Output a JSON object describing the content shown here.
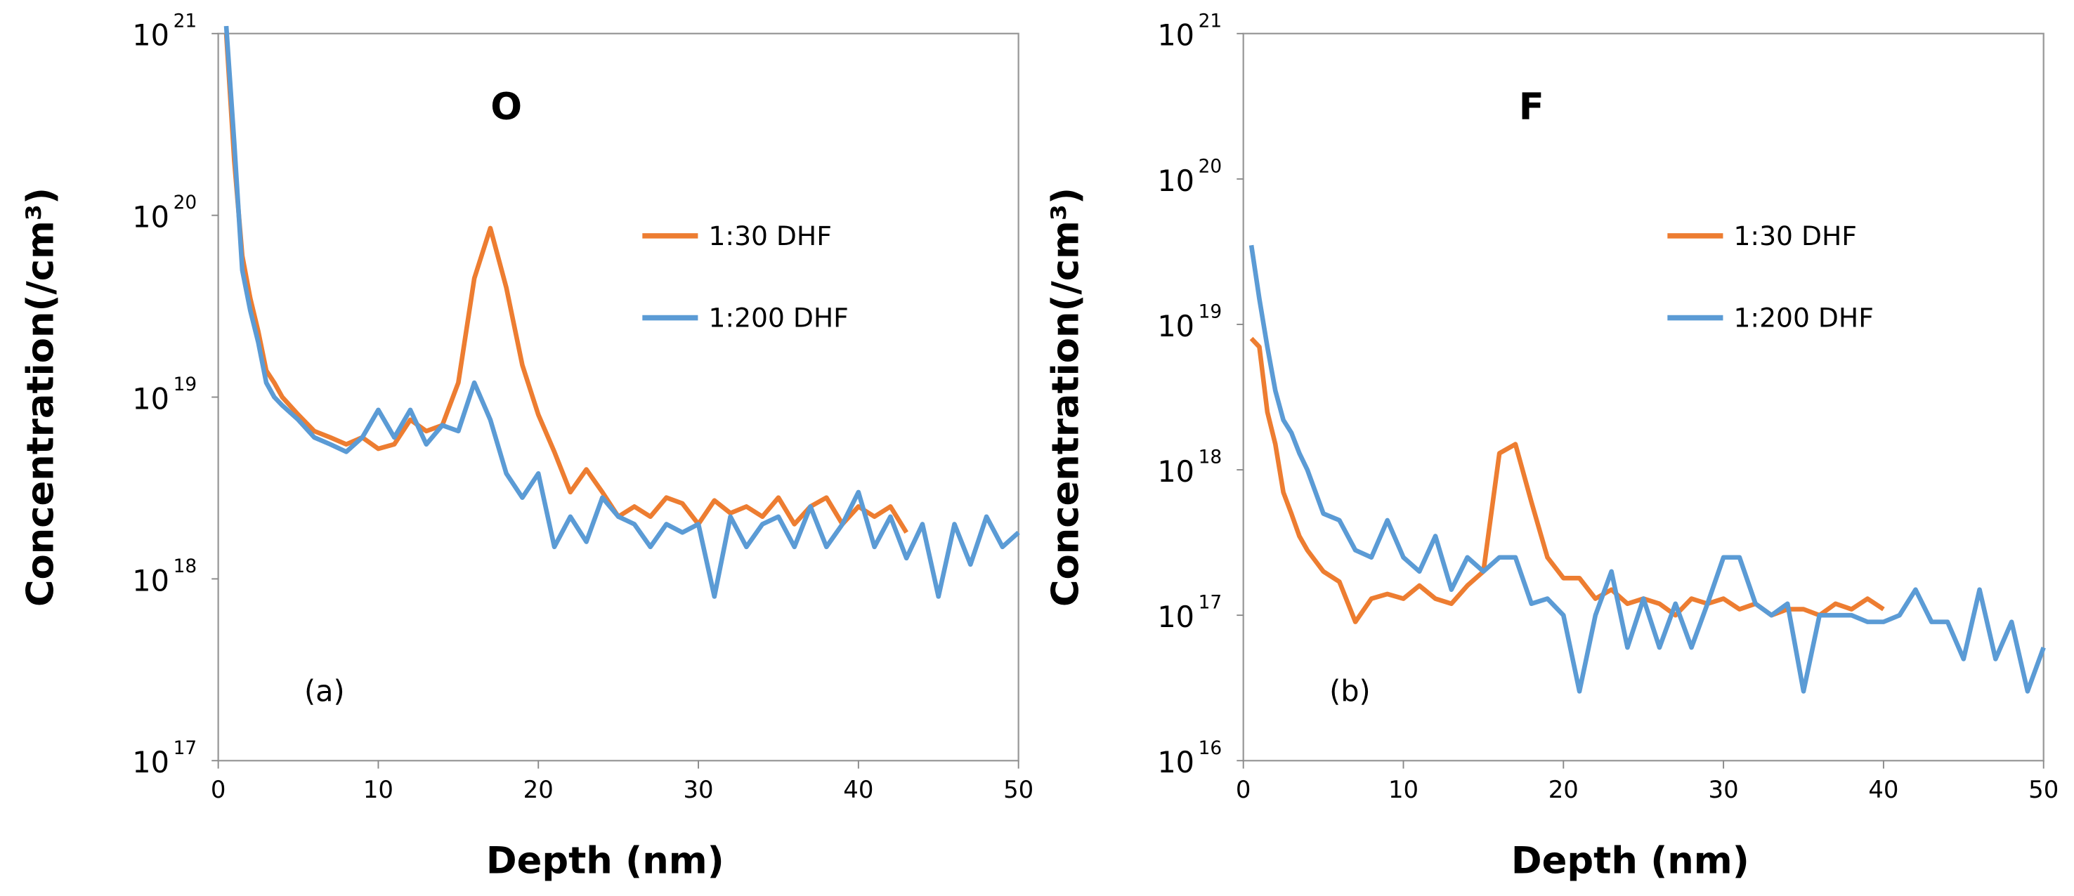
{
  "chart_data": [
    {
      "type": "line",
      "title": "O",
      "annotation": "(a)",
      "xlabel": "Depth (nm)",
      "ylabel": "Concentration(/cm³)",
      "log_y": true,
      "legend": "center right",
      "x": [
        0.5,
        1,
        1.5,
        2,
        2.5,
        3,
        3.5,
        4,
        5,
        6,
        7,
        8,
        9,
        10,
        11,
        12,
        13,
        14,
        15,
        16,
        17,
        18,
        19,
        20,
        21,
        22,
        23,
        24,
        25,
        26,
        27,
        28,
        29,
        30,
        31,
        32,
        33,
        34,
        35,
        36,
        37,
        38,
        39,
        40,
        41,
        42,
        43,
        44,
        45,
        46,
        47,
        48,
        49,
        50
      ],
      "xlim": [
        0,
        50
      ],
      "xticks": [
        0,
        10,
        20,
        30,
        40,
        50
      ],
      "ylim": [
        1e+17,
        1e+21
      ],
      "yticks": [
        {
          "value": 1e+17,
          "label": "10",
          "exponent": "17"
        },
        {
          "value": 1e+18,
          "label": "10",
          "exponent": "18"
        },
        {
          "value": 1e+19,
          "label": "10",
          "exponent": "19"
        },
        {
          "value": 1e+20,
          "label": "10",
          "exponent": "20"
        },
        {
          "value": 1e+21,
          "label": "10",
          "exponent": "21"
        }
      ],
      "series": [
        {
          "name": "1:30 DHF",
          "color": "#ed7d31",
          "values": [
            1e+21,
            2e+20,
            6e+19,
            3.5e+19,
            2.3e+19,
            1.4e+19,
            1.2e+19,
            1e+19,
            8e+18,
            6.5e+18,
            6e+18,
            5.5e+18,
            6e+18,
            5.2e+18,
            5.5e+18,
            7.5e+18,
            6.5e+18,
            7e+18,
            1.2e+19,
            4.5e+19,
            8.5e+19,
            4e+19,
            1.5e+19,
            8e+18,
            5e+18,
            3e+18,
            4e+18,
            3e+18,
            2.2e+18,
            2.5e+18,
            2.2e+18,
            2.8e+18,
            2.6e+18,
            2e+18,
            2.7e+18,
            2.3e+18,
            2.5e+18,
            2.2e+18,
            2.8e+18,
            2e+18,
            2.5e+18,
            2.8e+18,
            2e+18,
            2.5e+18,
            2.2e+18,
            2.5e+18,
            1.8e+18,
            null,
            null,
            null,
            null,
            null,
            null,
            null
          ]
        },
        {
          "name": "1:200 DHF",
          "color": "#5b9bd5",
          "values": [
            1.1e+21,
            2.5e+20,
            5e+19,
            3e+19,
            2e+19,
            1.2e+19,
            1e+19,
            9e+18,
            7.5e+18,
            6e+18,
            5.5e+18,
            5e+18,
            6e+18,
            8.5e+18,
            6e+18,
            8.5e+18,
            5.5e+18,
            7e+18,
            6.5e+18,
            1.2e+19,
            7.5e+18,
            3.8e+18,
            2.8e+18,
            3.8e+18,
            1.5e+18,
            2.2e+18,
            1.6e+18,
            2.8e+18,
            2.2e+18,
            2e+18,
            1.5e+18,
            2e+18,
            1.8e+18,
            2e+18,
            8e+17,
            2.2e+18,
            1.5e+18,
            2e+18,
            2.2e+18,
            1.5e+18,
            2.5e+18,
            1.5e+18,
            2e+18,
            3e+18,
            1.5e+18,
            2.2e+18,
            1.3e+18,
            2e+18,
            8e+17,
            2e+18,
            1.2e+18,
            2.2e+18,
            1.5e+18,
            1.8e+18
          ]
        }
      ]
    },
    {
      "type": "line",
      "title": "F",
      "annotation": "(b)",
      "xlabel": "Depth (nm)",
      "ylabel": "Concentration(/cm³)",
      "log_y": true,
      "legend": "center right",
      "x": [
        0.5,
        1,
        1.5,
        2,
        2.5,
        3,
        3.5,
        4,
        5,
        6,
        7,
        8,
        9,
        10,
        11,
        12,
        13,
        14,
        15,
        16,
        17,
        18,
        19,
        20,
        21,
        22,
        23,
        24,
        25,
        26,
        27,
        28,
        29,
        30,
        31,
        32,
        33,
        34,
        35,
        36,
        37,
        38,
        39,
        40,
        41,
        42,
        43,
        44,
        45,
        46,
        47,
        48,
        49,
        50
      ],
      "xlim": [
        0,
        50
      ],
      "xticks": [
        0,
        10,
        20,
        30,
        40,
        50
      ],
      "ylim": [
        1e+16,
        1e+21
      ],
      "yticks": [
        {
          "value": 1e+16,
          "label": "10",
          "exponent": "16"
        },
        {
          "value": 1e+17,
          "label": "10",
          "exponent": "17"
        },
        {
          "value": 1e+18,
          "label": "10",
          "exponent": "18"
        },
        {
          "value": 1e+19,
          "label": "10",
          "exponent": "19"
        },
        {
          "value": 1e+20,
          "label": "10",
          "exponent": "20"
        },
        {
          "value": 1e+21,
          "label": "10",
          "exponent": "21"
        }
      ],
      "series": [
        {
          "name": "1:30 DHF",
          "color": "#ed7d31",
          "values": [
            8e+18,
            7e+18,
            2.5e+18,
            1.5e+18,
            7e+17,
            5e+17,
            3.5e+17,
            2.8e+17,
            2e+17,
            1.7e+17,
            9e+16,
            1.3e+17,
            1.4e+17,
            1.3e+17,
            1.6e+17,
            1.3e+17,
            1.2e+17,
            1.6e+17,
            2e+17,
            1.3e+18,
            1.5e+18,
            6e+17,
            2.5e+17,
            1.8e+17,
            1.8e+17,
            1.3e+17,
            1.5e+17,
            1.2e+17,
            1.3e+17,
            1.2e+17,
            1e+17,
            1.3e+17,
            1.2e+17,
            1.3e+17,
            1.1e+17,
            1.2e+17,
            1e+17,
            1.1e+17,
            1.1e+17,
            1e+17,
            1.2e+17,
            1.1e+17,
            1.3e+17,
            1.1e+17,
            null,
            null,
            null,
            null,
            null,
            null,
            null,
            null,
            null,
            null
          ]
        },
        {
          "name": "1:200 DHF",
          "color": "#5b9bd5",
          "values": [
            3.5e+19,
            1.5e+19,
            7e+18,
            3.5e+18,
            2.2e+18,
            1.8e+18,
            1.3e+18,
            1e+18,
            5e+17,
            4.5e+17,
            2.8e+17,
            2.5e+17,
            4.5e+17,
            2.5e+17,
            2e+17,
            3.5e+17,
            1.5e+17,
            2.5e+17,
            2e+17,
            2.5e+17,
            2.5e+17,
            1.2e+17,
            1.3e+17,
            1e+17,
            3e+16,
            1e+17,
            2e+17,
            6e+16,
            1.3e+17,
            6e+16,
            1.2e+17,
            6e+16,
            1.2e+17,
            2.5e+17,
            2.5e+17,
            1.2e+17,
            1e+17,
            1.2e+17,
            3e+16,
            1e+17,
            1e+17,
            1e+17,
            9e+16,
            9e+16,
            1e+17,
            1.5e+17,
            9e+16,
            9e+16,
            5e+16,
            1.5e+17,
            5e+16,
            9e+16,
            3e+16,
            6e+16
          ]
        }
      ]
    }
  ]
}
